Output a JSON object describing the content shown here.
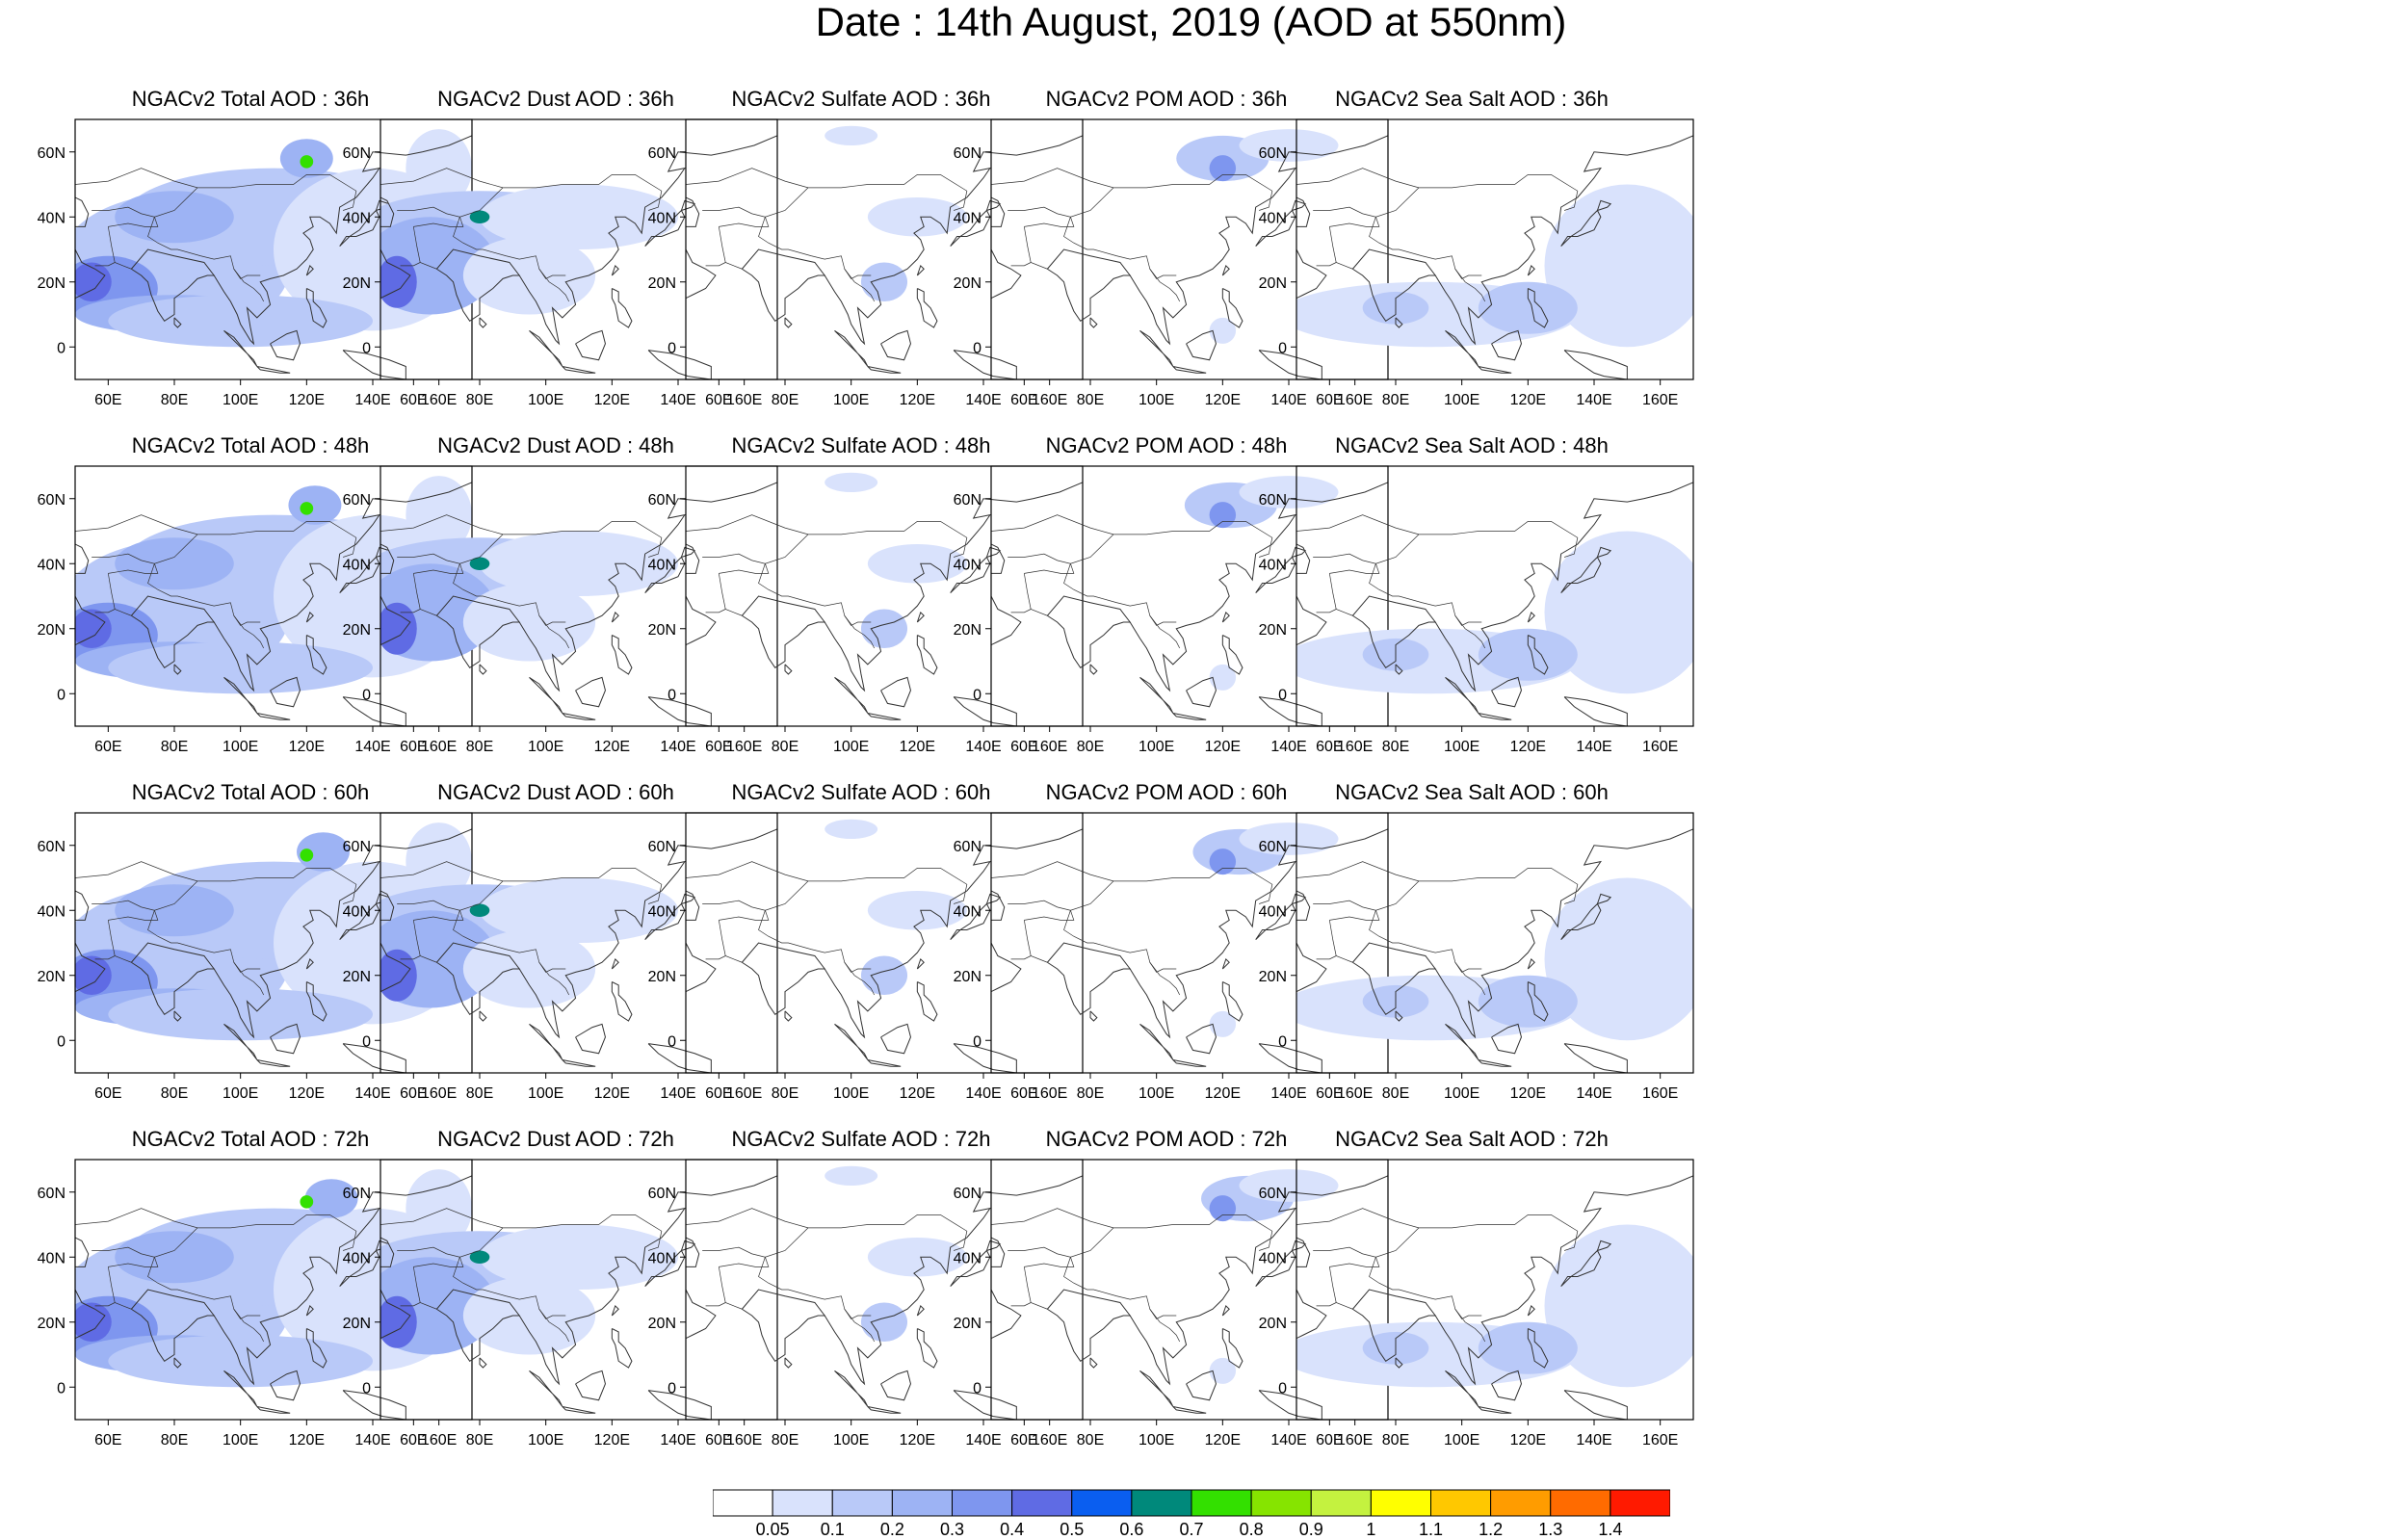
{
  "title": "Date : 14th August, 2019 (AOD at 550nm)",
  "axes": {
    "lat_ticks": [
      "60N",
      "40N",
      "20N",
      "0"
    ],
    "lon_ticks": [
      "60E",
      "80E",
      "100E",
      "120E",
      "140E",
      "160E"
    ]
  },
  "panels": [
    {
      "title": "NGACv2 Total AOD : 36h",
      "species": "total"
    },
    {
      "title": "NGACv2 Dust AOD : 36h",
      "species": "dust"
    },
    {
      "title": "NGACv2 Sulfate AOD : 36h",
      "species": "sulfate"
    },
    {
      "title": "NGACv2 POM AOD : 36h",
      "species": "pom"
    },
    {
      "title": "NGACv2 Sea Salt AOD : 36h",
      "species": "seasalt"
    },
    {
      "title": "NGACv2 Total AOD : 48h",
      "species": "total"
    },
    {
      "title": "NGACv2 Dust AOD : 48h",
      "species": "dust"
    },
    {
      "title": "NGACv2 Sulfate AOD : 48h",
      "species": "sulfate"
    },
    {
      "title": "NGACv2 POM AOD : 48h",
      "species": "pom"
    },
    {
      "title": "NGACv2 Sea Salt AOD : 48h",
      "species": "seasalt"
    },
    {
      "title": "NGACv2 Total AOD : 60h",
      "species": "total"
    },
    {
      "title": "NGACv2 Dust AOD : 60h",
      "species": "dust"
    },
    {
      "title": "NGACv2 Sulfate AOD : 60h",
      "species": "sulfate"
    },
    {
      "title": "NGACv2 POM AOD : 60h",
      "species": "pom"
    },
    {
      "title": "NGACv2 Sea Salt AOD : 60h",
      "species": "seasalt"
    },
    {
      "title": "NGACv2 Total AOD : 72h",
      "species": "total"
    },
    {
      "title": "NGACv2 Dust AOD : 72h",
      "species": "dust"
    },
    {
      "title": "NGACv2 Sulfate AOD : 72h",
      "species": "sulfate"
    },
    {
      "title": "NGACv2 POM AOD : 72h",
      "species": "pom"
    },
    {
      "title": "NGACv2 Sea Salt  AOD : 72h",
      "species": "seasalt"
    }
  ],
  "colorbar": {
    "labels": [
      "0.05",
      "0.1",
      "0.2",
      "0.3",
      "0.4",
      "0.5",
      "0.6",
      "0.7",
      "0.8",
      "0.9",
      "1",
      "1.1",
      "1.2",
      "1.3",
      "1.4"
    ],
    "colors": [
      "#ffffff",
      "#d9e2fc",
      "#b9c9f8",
      "#9db3f4",
      "#7e96ef",
      "#5f6be4",
      "#0a5ef0",
      "#00897b",
      "#33e000",
      "#86e400",
      "#c4f23f",
      "#ffff00",
      "#ffc800",
      "#ff9c00",
      "#ff6b00",
      "#ff1a00"
    ]
  }
}
